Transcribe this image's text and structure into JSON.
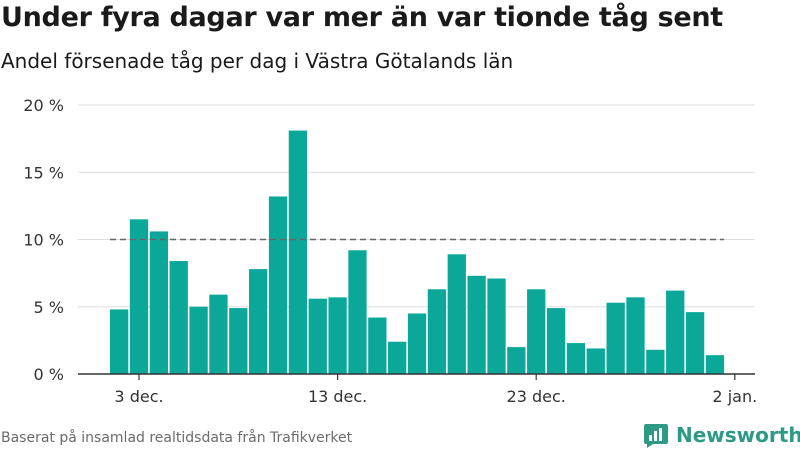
{
  "header": {
    "title": "Under fyra dagar var mer än var tionde tåg sent",
    "subtitle": "Andel försenade tåg per dag i Västra Götalands län"
  },
  "footer": {
    "source": "Baserat på insamlad realtidsdata från Trafikverket",
    "brand": "Newsworthy"
  },
  "colors": {
    "bar": "#0ba89a",
    "reference_line": "#666666",
    "grid": "#dddddd",
    "axis": "#333333",
    "brand": "#2e9a86"
  },
  "icons": {
    "brand_logo": "newsworthy-logo-icon"
  },
  "chart_data": {
    "type": "bar",
    "x_type": "date",
    "x": [
      "2023-12-02",
      "2023-12-03",
      "2023-12-04",
      "2023-12-05",
      "2023-12-06",
      "2023-12-07",
      "2023-12-08",
      "2023-12-09",
      "2023-12-10",
      "2023-12-11",
      "2023-12-12",
      "2023-12-13",
      "2023-12-14",
      "2023-12-15",
      "2023-12-16",
      "2023-12-17",
      "2023-12-18",
      "2023-12-19",
      "2023-12-20",
      "2023-12-21",
      "2023-12-22",
      "2023-12-23",
      "2023-12-24",
      "2023-12-25",
      "2023-12-26",
      "2023-12-27",
      "2023-12-28",
      "2023-12-29",
      "2023-12-30",
      "2023-12-31",
      "2024-01-01"
    ],
    "values": [
      4.8,
      11.5,
      10.6,
      8.4,
      5.0,
      5.9,
      4.9,
      7.8,
      13.2,
      18.1,
      5.6,
      5.7,
      9.2,
      4.2,
      2.4,
      4.5,
      6.3,
      8.9,
      7.3,
      7.1,
      2.0,
      6.3,
      4.9,
      2.3,
      1.9,
      5.3,
      5.7,
      1.8,
      6.2,
      4.6,
      1.4
    ],
    "unit": "%",
    "ylim": [
      0,
      20
    ],
    "yticks": [
      0,
      5,
      10,
      15,
      20
    ],
    "ytick_labels": [
      "0 %",
      "5 %",
      "10 %",
      "15 %",
      "20 %"
    ],
    "xticks": [
      "2023-12-03",
      "2023-12-13",
      "2023-12-23",
      "2024-01-02"
    ],
    "xtick_labels": [
      "3 dec.",
      "13 dec.",
      "23 dec.",
      "2 jan."
    ],
    "xlim": [
      "2023-12-02",
      "2024-01-02"
    ],
    "reference_line": {
      "value": 10,
      "style": "dashed"
    },
    "grid": true,
    "legend": false
  }
}
